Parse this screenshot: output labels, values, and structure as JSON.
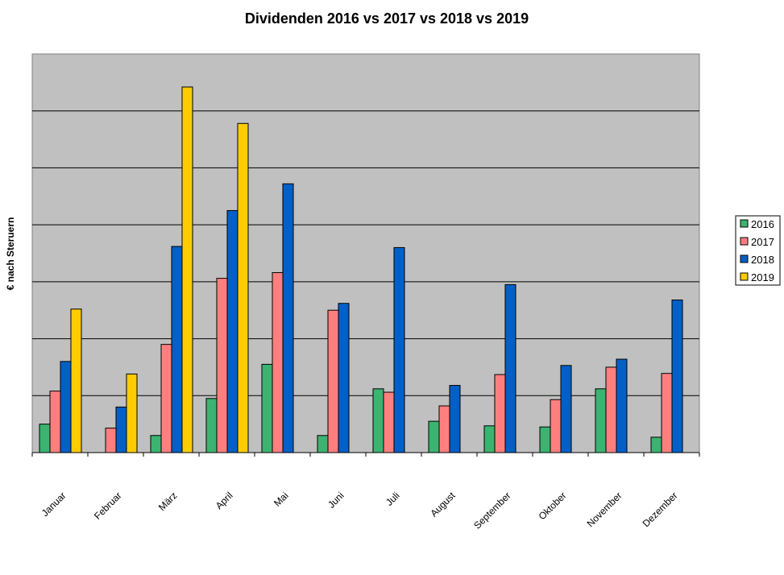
{
  "chart_data": {
    "type": "bar",
    "title": "Dividenden 2016 vs 2017 vs 2018 vs 2019",
    "xlabel": "",
    "ylabel": "€ nach Steruern",
    "categories": [
      "Januar",
      "Februar",
      "März",
      "April",
      "Mai",
      "Juni",
      "Juli",
      "August",
      "September",
      "Oktober",
      "November",
      "Dezember"
    ],
    "series": [
      {
        "name": "2016",
        "color": "#3CB371",
        "values": [
          0.5,
          0.0,
          0.3,
          0.95,
          1.55,
          0.3,
          1.12,
          0.55,
          0.47,
          0.45,
          1.12,
          0.27
        ]
      },
      {
        "name": "2017",
        "color": "#FF7F7F",
        "values": [
          1.08,
          0.43,
          1.9,
          3.06,
          3.16,
          2.5,
          1.06,
          0.82,
          1.37,
          0.93,
          1.5,
          1.39
        ]
      },
      {
        "name": "2018",
        "color": "#0060C8",
        "values": [
          1.6,
          0.8,
          3.62,
          4.25,
          4.72,
          2.62,
          3.6,
          1.18,
          2.95,
          1.53,
          1.64,
          2.68
        ]
      },
      {
        "name": "2019",
        "color": "#FFCC00",
        "values": [
          2.52,
          1.38,
          6.42,
          5.78,
          null,
          null,
          null,
          null,
          null,
          null,
          null,
          null
        ]
      }
    ],
    "ylim": [
      0,
      7
    ],
    "y_gridlines": [
      1,
      2,
      3,
      4,
      5,
      6
    ],
    "y_tick_labels_shown": false,
    "grid": true,
    "plot_background": "#C0C0C0",
    "legend_position": "right"
  }
}
